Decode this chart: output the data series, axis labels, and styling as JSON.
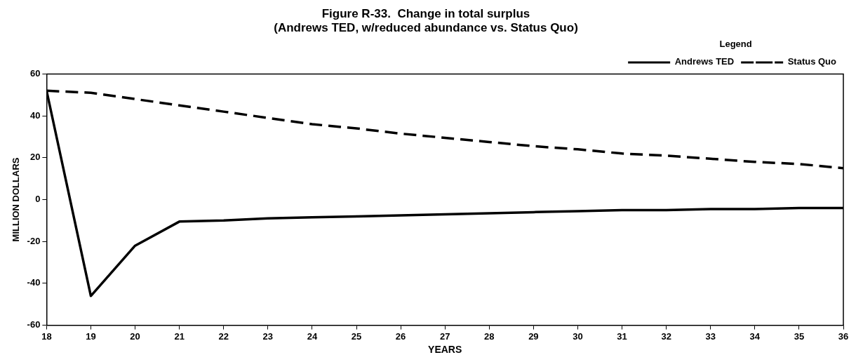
{
  "chart_data": {
    "type": "line",
    "title": [
      "Figure R-33.  Change in total surplus",
      "(Andrews TED, w/reduced abundance vs. Status Quo)"
    ],
    "xlabel": "YEARS",
    "ylabel": "MILLION DOLLARS",
    "legend_title": "Legend",
    "legend": "top right",
    "grid": false,
    "marker": "none",
    "x": [
      18,
      19,
      20,
      21,
      22,
      23,
      24,
      25,
      26,
      27,
      28,
      29,
      30,
      31,
      32,
      33,
      34,
      35,
      36
    ],
    "xlim": [
      18,
      36
    ],
    "xticks": [
      18,
      19,
      20,
      21,
      22,
      23,
      24,
      25,
      26,
      27,
      28,
      29,
      30,
      31,
      32,
      33,
      34,
      35,
      36
    ],
    "ylim": [
      -60,
      60
    ],
    "yticks": [
      -60,
      -40,
      -20,
      0,
      20,
      40,
      60
    ],
    "series": [
      {
        "name": "Andrews TED",
        "color": "#000000",
        "line_style": "solid",
        "values": [
          52,
          -46,
          -22,
          -10.5,
          -10,
          -9,
          -8.5,
          -8,
          -7.5,
          -7,
          -6.5,
          -6,
          -5.5,
          -5,
          -5,
          -4.5,
          -4.5,
          -4,
          -4
        ]
      },
      {
        "name": "Status Quo",
        "color": "#000000",
        "line_style": "dashed",
        "values": [
          52,
          51,
          48,
          45,
          42,
          39,
          36,
          34,
          31.5,
          29.5,
          27.5,
          25.5,
          24,
          22,
          21,
          19.5,
          18,
          17,
          15
        ]
      }
    ]
  }
}
